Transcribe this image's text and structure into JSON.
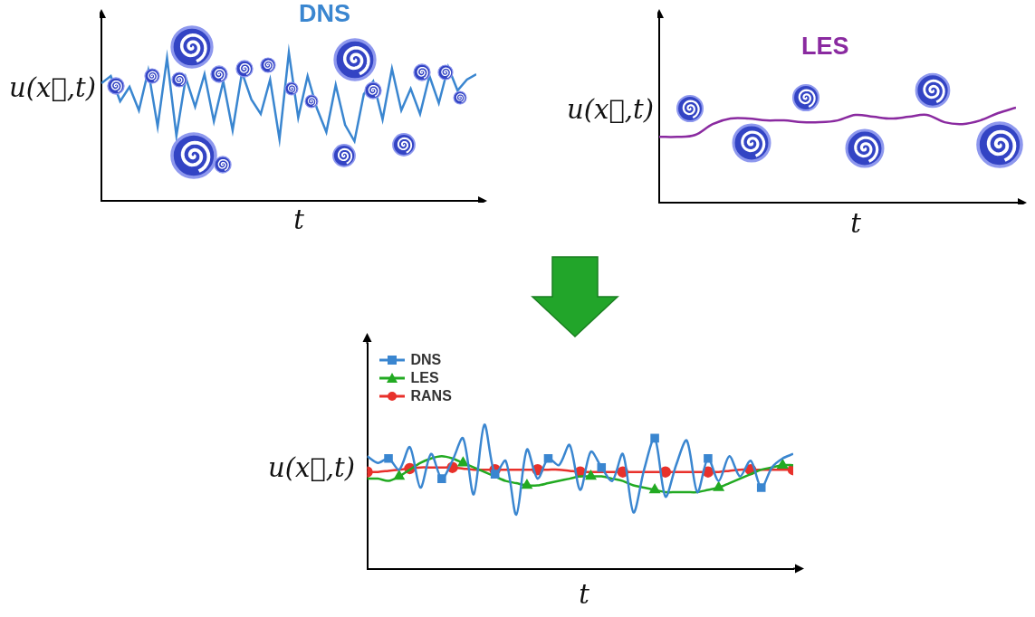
{
  "chart_data": [
    {
      "type": "line",
      "title": "DNS",
      "xlabel": "t",
      "ylabel": "u(x⃗,t)",
      "x": [
        0,
        1,
        2,
        3,
        4,
        5,
        6,
        7,
        8,
        9,
        10,
        11,
        12,
        13,
        14,
        15,
        16,
        17,
        18,
        19,
        20,
        21,
        22,
        23,
        24,
        25,
        26,
        27,
        28,
        29,
        30,
        31,
        32,
        33,
        34,
        35,
        36,
        37,
        38,
        39,
        40
      ],
      "values": [
        6.5,
        6.9,
        5.5,
        6.3,
        5.0,
        7.2,
        4.1,
        7.9,
        3.6,
        6.8,
        5.2,
        7.0,
        4.4,
        6.6,
        3.9,
        7.1,
        5.6,
        4.8,
        6.7,
        3.4,
        8.2,
        4.6,
        6.9,
        5.1,
        3.8,
        6.4,
        4.2,
        3.3,
        5.9,
        6.6,
        4.5,
        7.3,
        5.0,
        6.2,
        4.8,
        6.9,
        5.4,
        7.4,
        6.1,
        6.7,
        7.0
      ],
      "color": "#3a86d0",
      "xlim": [
        0,
        40
      ],
      "ylim": [
        0,
        10
      ],
      "grid": false,
      "tick_labels": false
    },
    {
      "type": "line",
      "title": "LES",
      "xlabel": "t",
      "ylabel": "u(x⃗,t)",
      "x": [
        0,
        1,
        2,
        3,
        4,
        5,
        6,
        7,
        8,
        9,
        10,
        11,
        12,
        13,
        14,
        15,
        16,
        17,
        18,
        19,
        20
      ],
      "values": [
        3.6,
        3.6,
        3.7,
        4.3,
        4.6,
        4.6,
        4.5,
        4.5,
        4.4,
        4.4,
        4.5,
        4.8,
        4.7,
        4.6,
        4.7,
        4.8,
        4.4,
        4.3,
        4.5,
        4.9,
        5.2
      ],
      "color": "#8a2aa0",
      "xlim": [
        0,
        20
      ],
      "ylim": [
        0,
        10
      ],
      "grid": false,
      "tick_labels": false
    },
    {
      "type": "line",
      "xlabel": "t",
      "ylabel": "u(x⃗,t)",
      "x": [
        0,
        1,
        2,
        3,
        4,
        5,
        6,
        7,
        8,
        9,
        10,
        11,
        12,
        13,
        14,
        15,
        16,
        17,
        18,
        19,
        20,
        21,
        22,
        23,
        24,
        25,
        26,
        27,
        28,
        29,
        30,
        31,
        32,
        33,
        34,
        35,
        36,
        37,
        38,
        39,
        40
      ],
      "series": [
        {
          "name": "DNS",
          "color": "#3a86d0",
          "marker": "square",
          "line_style": "solid",
          "values": [
            5.0,
            4.7,
            4.9,
            4.4,
            5.4,
            3.6,
            5.1,
            4.0,
            4.8,
            5.8,
            3.3,
            6.4,
            4.2,
            4.8,
            2.4,
            5.3,
            4.0,
            4.9,
            4.6,
            5.5,
            3.5,
            5.2,
            4.5,
            3.9,
            5.1,
            2.5,
            4.4,
            5.8,
            3.2,
            4.6,
            5.7,
            3.4,
            4.9,
            3.9,
            5.0,
            4.1,
            4.8,
            3.6,
            4.5,
            4.9,
            5.1
          ]
        },
        {
          "name": "LES",
          "color": "#22aa22",
          "marker": "triangle",
          "line_style": "solid",
          "values": [
            4.0,
            4.0,
            3.9,
            4.1,
            4.4,
            4.7,
            4.9,
            5.0,
            4.9,
            4.7,
            4.5,
            4.3,
            4.1,
            3.9,
            3.8,
            3.7,
            3.7,
            3.8,
            3.9,
            4.0,
            4.1,
            4.1,
            4.1,
            4.0,
            3.9,
            3.7,
            3.6,
            3.5,
            3.4,
            3.4,
            3.4,
            3.4,
            3.5,
            3.6,
            3.8,
            4.0,
            4.2,
            4.4,
            4.5,
            4.6,
            4.6
          ]
        },
        {
          "name": "RANS",
          "color": "#e8312b",
          "marker": "circle",
          "line_style": "solid",
          "values": [
            4.3,
            4.3,
            4.35,
            4.4,
            4.45,
            4.5,
            4.5,
            4.5,
            4.5,
            4.45,
            4.4,
            4.4,
            4.4,
            4.4,
            4.4,
            4.4,
            4.4,
            4.4,
            4.4,
            4.35,
            4.3,
            4.3,
            4.3,
            4.3,
            4.3,
            4.3,
            4.3,
            4.3,
            4.3,
            4.3,
            4.3,
            4.3,
            4.3,
            4.3,
            4.35,
            4.4,
            4.4,
            4.4,
            4.4,
            4.4,
            4.4
          ]
        }
      ],
      "xlim": [
        0,
        40
      ],
      "ylim": [
        0,
        10
      ],
      "grid": false,
      "tick_labels": false,
      "legend": "upper left"
    }
  ]
}
